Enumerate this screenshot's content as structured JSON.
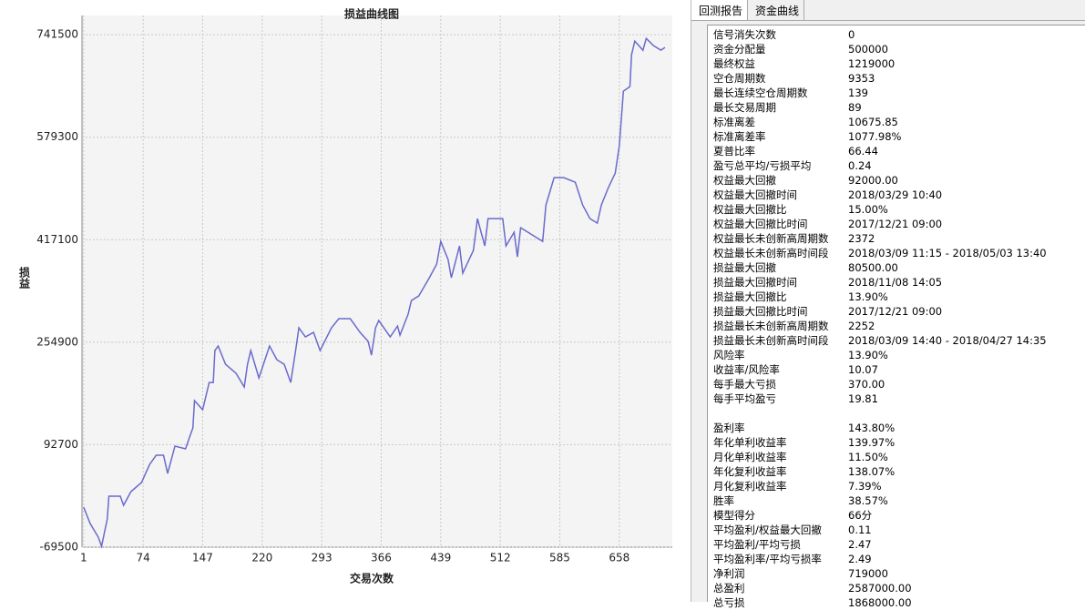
{
  "chart_data": {
    "type": "line",
    "title": "损益曲线图",
    "y_label": "损益",
    "x_label": "交易次数",
    "color": "#6a6acd",
    "grid": true,
    "xlim": [
      -1,
      723
    ],
    "ylim": [
      -69500,
      772000
    ],
    "xticks": [
      1,
      74,
      147,
      220,
      293,
      366,
      439,
      512,
      585,
      658
    ],
    "yticks": [
      -69500,
      92700,
      254900,
      417100,
      579300,
      741500
    ],
    "x": [
      1,
      9,
      19,
      23,
      30,
      32,
      46,
      50,
      59,
      72,
      82,
      90,
      99,
      104,
      113,
      126,
      131,
      135,
      137,
      147,
      155,
      160,
      162,
      166,
      175,
      188,
      198,
      202,
      206,
      216,
      229,
      238,
      247,
      255,
      261,
      265,
      273,
      283,
      291,
      305,
      314,
      328,
      340,
      350,
      354,
      359,
      363,
      377,
      386,
      389,
      399,
      403,
      412,
      425,
      434,
      439,
      448,
      452,
      462,
      466,
      479,
      484,
      493,
      497,
      515,
      519,
      529,
      533,
      537,
      555,
      564,
      568,
      578,
      590,
      604,
      613,
      622,
      631,
      636,
      645,
      653,
      658,
      663,
      671,
      673,
      677,
      687,
      691,
      700,
      709,
      714
    ],
    "values": [
      -6100,
      -32100,
      -53700,
      -68100,
      -24900,
      11200,
      11200,
      -3200,
      18400,
      32800,
      61600,
      76000,
      76000,
      47200,
      90400,
      86100,
      104800,
      119200,
      162400,
      148000,
      191200,
      191200,
      241700,
      248900,
      220000,
      205600,
      184000,
      220000,
      241700,
      198400,
      248900,
      227200,
      220000,
      191200,
      241700,
      277700,
      263300,
      270500,
      241700,
      277700,
      292100,
      292100,
      270500,
      256100,
      234400,
      277700,
      289200,
      263300,
      280500,
      266100,
      299300,
      320900,
      328100,
      356900,
      378500,
      414500,
      385700,
      356900,
      407300,
      364100,
      400100,
      450500,
      407300,
      450500,
      450500,
      407300,
      428900,
      390000,
      436100,
      421700,
      414500,
      472100,
      515300,
      515300,
      508100,
      472100,
      450500,
      443300,
      472100,
      500900,
      522500,
      565800,
      652200,
      659400,
      709800,
      731400,
      717000,
      735700,
      724200,
      717000,
      721300
    ]
  },
  "tabs": [
    "回测报告",
    "资金曲线"
  ],
  "report": {
    "groups": [
      [
        [
          "信号消失次数",
          "0"
        ],
        [
          "资金分配量",
          "500000"
        ],
        [
          "最终权益",
          "1219000"
        ],
        [
          "空仓周期数",
          "9353"
        ],
        [
          "最长连续空仓周期数",
          "139"
        ],
        [
          "最长交易周期",
          "89"
        ],
        [
          "标准离差",
          "10675.85"
        ],
        [
          "标准离差率",
          "1077.98%"
        ],
        [
          "夏普比率",
          "66.44"
        ],
        [
          "盈亏总平均/亏损平均",
          "0.24"
        ],
        [
          "权益最大回撤",
          "92000.00"
        ],
        [
          "权益最大回撤时间",
          "2018/03/29 10:40"
        ],
        [
          "权益最大回撤比",
          "15.00%"
        ],
        [
          "权益最大回撤比时间",
          "2017/12/21 09:00"
        ],
        [
          "权益最长未创新高周期数",
          "2372"
        ],
        [
          "权益最长未创新高时间段",
          "2018/03/09 11:15 - 2018/05/03 13:40"
        ],
        [
          "损益最大回撤",
          "80500.00"
        ],
        [
          "损益最大回撤时间",
          "2018/11/08 14:05"
        ],
        [
          "损益最大回撤比",
          "13.90%"
        ],
        [
          "损益最大回撤比时间",
          "2017/12/21 09:00"
        ],
        [
          "损益最长未创新高周期数",
          "2252"
        ],
        [
          "损益最长未创新高时间段",
          "2018/03/09 14:40 - 2018/04/27 14:35"
        ],
        [
          "风险率",
          "13.90%"
        ],
        [
          "收益率/风险率",
          "10.07"
        ],
        [
          "每手最大亏损",
          "370.00"
        ],
        [
          "每手平均盈亏",
          "19.81"
        ]
      ],
      [
        [
          "盈利率",
          "143.80%"
        ],
        [
          "年化单利收益率",
          "139.97%"
        ],
        [
          "月化单利收益率",
          "11.50%"
        ],
        [
          "年化复利收益率",
          "138.07%"
        ],
        [
          "月化复利收益率",
          "7.39%"
        ],
        [
          "胜率",
          "38.57%"
        ],
        [
          "模型得分",
          "66分"
        ],
        [
          "平均盈利/权益最大回撤",
          "0.11"
        ],
        [
          "平均盈利/平均亏损",
          "2.47"
        ],
        [
          "平均盈利率/平均亏损率",
          "2.49"
        ],
        [
          "净利润",
          "719000"
        ],
        [
          "总盈利",
          "2587000.00"
        ],
        [
          "总亏损",
          "1868000.00"
        ]
      ]
    ]
  }
}
